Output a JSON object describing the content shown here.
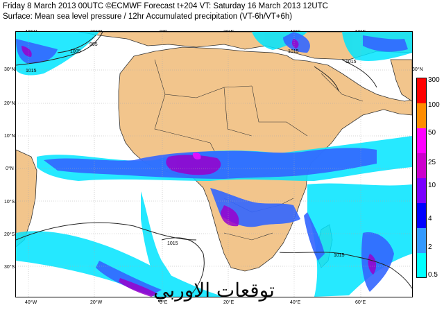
{
  "header": {
    "line1": "Friday 8 March 2013 00UTC ©ECMWF Forecast t+204 VT: Saturday 16 March 2013 12UTC",
    "line2": "Surface: Mean sea level pressure / 12hr Accumulated precipitation (VT-6h/VT+6h)"
  },
  "map": {
    "lon_labels": [
      "40°W",
      "20°W",
      "0°E",
      "20°E",
      "40°E",
      "60°E"
    ],
    "lat_labels": [
      "30°N",
      "20°N",
      "10°N",
      "0°N",
      "10°S",
      "20°S",
      "30°S"
    ],
    "right_lat_label": "30°N",
    "isobar_labels": [
      "995",
      "1005",
      "1015",
      "1015",
      "1015",
      "1015",
      "1015"
    ],
    "watermark": "توقعات الاوربي"
  },
  "colorbar": {
    "levels": [
      "300",
      "100",
      "50",
      "25",
      "10",
      "4",
      "2",
      "0.5"
    ],
    "colors": [
      "#ff0000",
      "#ff8c00",
      "#ff00ff",
      "#cc00cc",
      "#7a00ff",
      "#0000ff",
      "#3399ff",
      "#00ffff"
    ]
  },
  "colors": {
    "land": "#f2c58c",
    "sea": "#ffffff",
    "precip_light": "#00e5ff",
    "precip_mid": "#3366ff",
    "precip_heavy": "#9900cc"
  }
}
